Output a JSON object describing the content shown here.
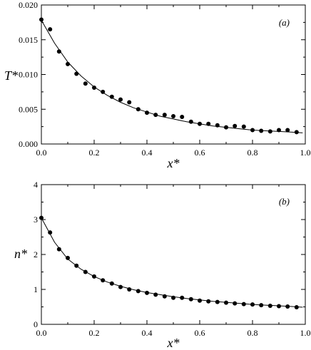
{
  "chart_data": [
    {
      "type": "scatter",
      "panel_label": "(a)",
      "xlabel": "x*",
      "ylabel": "T*",
      "xlim": [
        0.0,
        1.0
      ],
      "ylim": [
        0.0,
        0.02
      ],
      "xticks": [
        "0.0",
        "0.2",
        "0.4",
        "0.6",
        "0.8",
        "1.0"
      ],
      "yticks": [
        "0.000",
        "0.005",
        "0.010",
        "0.015",
        "0.020"
      ],
      "series": [
        {
          "kind": "points",
          "x": [
            0.0,
            0.033,
            0.067,
            0.1,
            0.133,
            0.167,
            0.2,
            0.233,
            0.267,
            0.3,
            0.333,
            0.367,
            0.4,
            0.433,
            0.467,
            0.5,
            0.533,
            0.567,
            0.6,
            0.633,
            0.667,
            0.7,
            0.733,
            0.767,
            0.8,
            0.833,
            0.867,
            0.9,
            0.933,
            0.967
          ],
          "y": [
            0.0179,
            0.0165,
            0.0133,
            0.0115,
            0.0101,
            0.0087,
            0.0081,
            0.0075,
            0.0068,
            0.0064,
            0.006,
            0.005,
            0.0045,
            0.0042,
            0.0042,
            0.004,
            0.0039,
            0.0032,
            0.0029,
            0.0029,
            0.0027,
            0.0024,
            0.0026,
            0.0025,
            0.002,
            0.0019,
            0.0018,
            0.002,
            0.002,
            0.0017
          ]
        },
        {
          "kind": "line",
          "x": [
            0.0,
            0.05,
            0.1,
            0.15,
            0.2,
            0.25,
            0.3,
            0.35,
            0.4,
            0.45,
            0.5,
            0.55,
            0.6,
            0.65,
            0.7,
            0.75,
            0.8,
            0.85,
            0.9,
            0.95,
            0.99
          ],
          "y": [
            0.0178,
            0.0145,
            0.0118,
            0.0098,
            0.0082,
            0.007,
            0.006,
            0.0052,
            0.0046,
            0.004,
            0.0036,
            0.0032,
            0.0029,
            0.0026,
            0.0024,
            0.0022,
            0.002,
            0.0019,
            0.0018,
            0.0017,
            0.0016
          ]
        }
      ]
    },
    {
      "type": "scatter",
      "panel_label": "(b)",
      "xlabel": "x*",
      "ylabel": "n*",
      "xlim": [
        0.0,
        1.0
      ],
      "ylim": [
        0,
        4
      ],
      "xticks": [
        "0.0",
        "0.2",
        "0.4",
        "0.6",
        "0.8",
        "1.0"
      ],
      "yticks": [
        "0",
        "1",
        "2",
        "3",
        "4"
      ],
      "series": [
        {
          "kind": "points",
          "x": [
            0.0,
            0.033,
            0.067,
            0.1,
            0.133,
            0.167,
            0.2,
            0.233,
            0.267,
            0.3,
            0.333,
            0.367,
            0.4,
            0.433,
            0.467,
            0.5,
            0.533,
            0.567,
            0.6,
            0.633,
            0.667,
            0.7,
            0.733,
            0.767,
            0.8,
            0.833,
            0.867,
            0.9,
            0.933,
            0.967
          ],
          "y": [
            3.05,
            2.63,
            2.15,
            1.9,
            1.68,
            1.5,
            1.37,
            1.26,
            1.17,
            1.07,
            1.0,
            0.95,
            0.9,
            0.85,
            0.8,
            0.76,
            0.76,
            0.72,
            0.68,
            0.66,
            0.64,
            0.62,
            0.6,
            0.58,
            0.57,
            0.55,
            0.53,
            0.52,
            0.51,
            0.49
          ]
        },
        {
          "kind": "line",
          "x": [
            0.0,
            0.05,
            0.1,
            0.15,
            0.2,
            0.25,
            0.3,
            0.35,
            0.4,
            0.45,
            0.5,
            0.55,
            0.6,
            0.65,
            0.7,
            0.75,
            0.8,
            0.85,
            0.9,
            0.95,
            0.99
          ],
          "y": [
            3.05,
            2.35,
            1.87,
            1.58,
            1.37,
            1.21,
            1.09,
            0.99,
            0.91,
            0.85,
            0.79,
            0.74,
            0.7,
            0.66,
            0.63,
            0.6,
            0.57,
            0.55,
            0.53,
            0.51,
            0.49
          ]
        }
      ]
    }
  ]
}
